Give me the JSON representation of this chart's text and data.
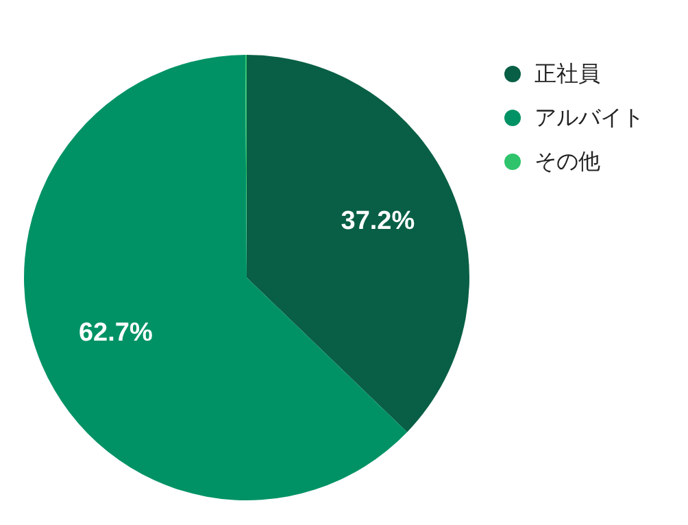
{
  "chart_data": {
    "type": "pie",
    "categories": [
      "正社員",
      "アルバイト",
      "その他"
    ],
    "values": [
      37.2,
      62.7,
      0.1
    ],
    "colors": [
      "#085f45",
      "#009265",
      "#2fc46b"
    ],
    "value_labels": [
      "37.2%",
      "62.7%",
      null
    ],
    "legend": "top right"
  }
}
